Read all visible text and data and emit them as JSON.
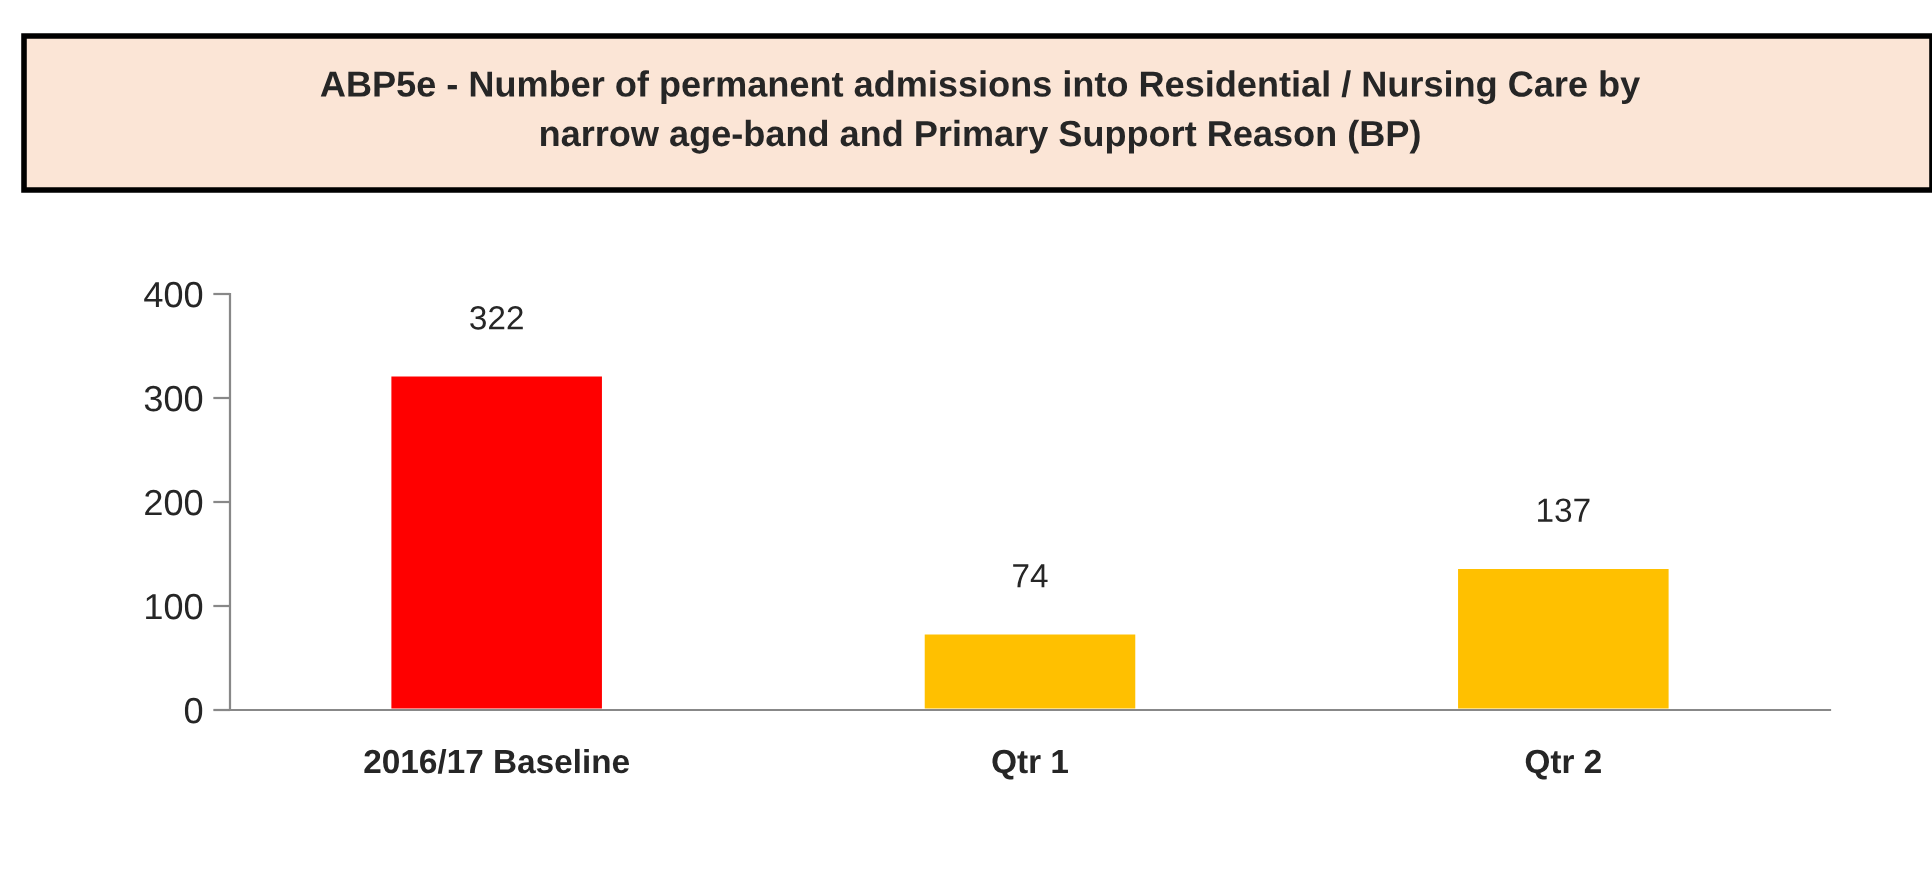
{
  "chart_data": {
    "type": "bar",
    "title": "ABP5e - Number of permanent admissions into Residential / Nursing Care by\nnarrow age-band and Primary Support Reason (BP)",
    "categories": [
      "2016/17 Baseline",
      "Qtr 1",
      "Qtr 2"
    ],
    "values": [
      322,
      74,
      137
    ],
    "colors": [
      "#ff0000",
      "#ffc000",
      "#ffc000"
    ],
    "ylim": [
      0,
      400
    ],
    "yticks": [
      0,
      100,
      200,
      300,
      400
    ],
    "data_labels": true,
    "grid": false,
    "legend": false
  }
}
